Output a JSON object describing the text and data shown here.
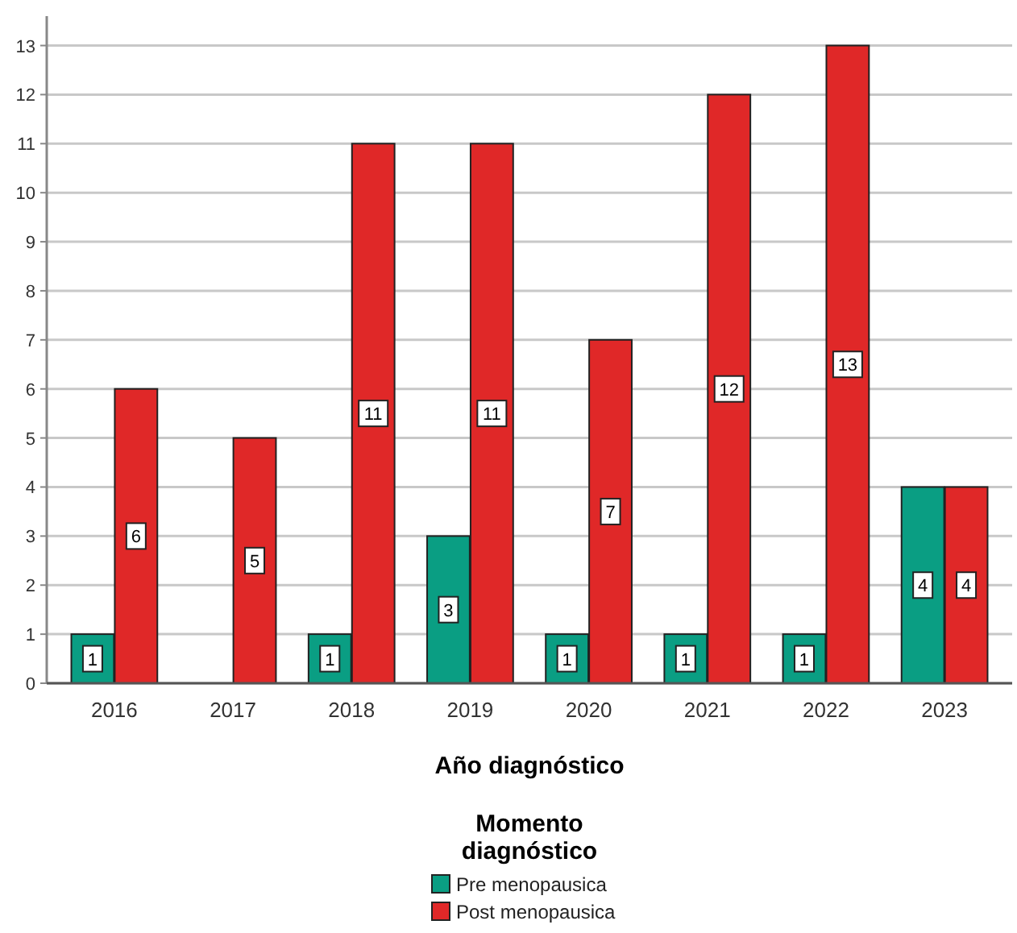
{
  "chart_data": {
    "type": "bar",
    "xlabel": "Año diagnóstico",
    "legend_title": "Momento diagnóstico",
    "categories": [
      "2016",
      "2017",
      "2018",
      "2019",
      "2020",
      "2021",
      "2022",
      "2023"
    ],
    "series": [
      {
        "name": "Pre menopausica",
        "color": "#0a9e83",
        "values": [
          1,
          null,
          1,
          3,
          1,
          1,
          1,
          4
        ]
      },
      {
        "name": "Post menopausica",
        "color": "#e02828",
        "values": [
          6,
          5,
          11,
          11,
          7,
          12,
          13,
          4
        ]
      }
    ],
    "ylim": [
      0,
      13.6
    ],
    "yticks": [
      0,
      1,
      2,
      3,
      4,
      5,
      6,
      7,
      8,
      9,
      10,
      11,
      12,
      13
    ],
    "grid": "y",
    "data_labels": true,
    "legend": "bottom"
  }
}
